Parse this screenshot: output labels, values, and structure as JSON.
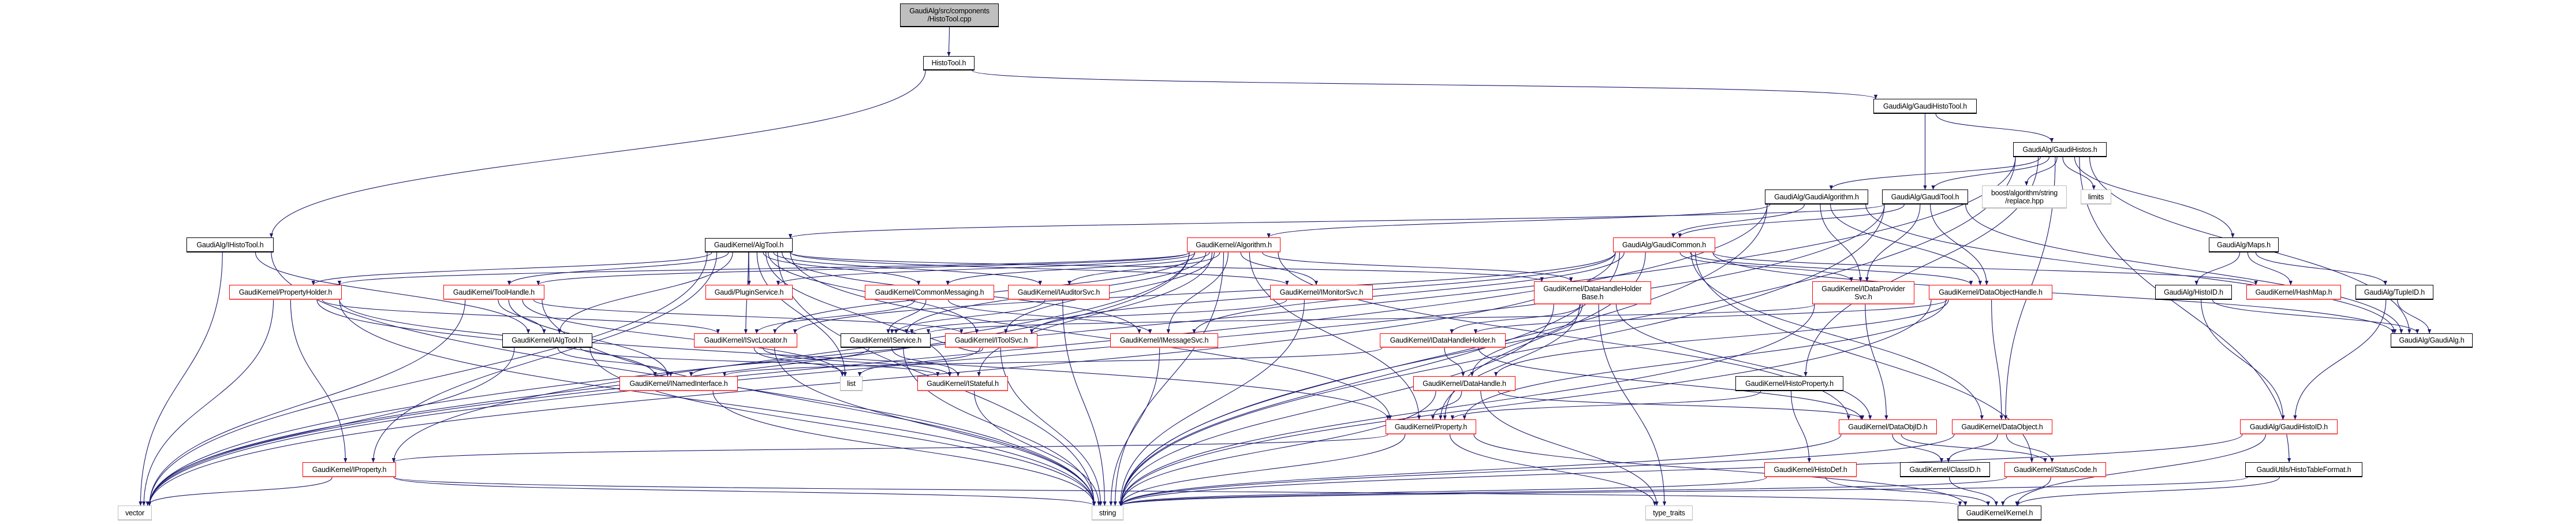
{
  "graph": {
    "edge_color": "#191970",
    "colors": {
      "documented": "#000000",
      "truncated": "#ff0000",
      "external": "#bfbfbf",
      "root_fill": "#bfbfbf"
    },
    "nodes": [
      {
        "id": "cpp",
        "label": "GaudiAlg/src/components\n/HistoTool.cpp",
        "style": "root"
      },
      {
        "id": "HistoTool",
        "label": "HistoTool.h",
        "style": "documented"
      },
      {
        "id": "IHistoTool",
        "label": "GaudiAlg/IHistoTool.h",
        "style": "documented"
      },
      {
        "id": "GaudiHistoTool",
        "label": "GaudiAlg/GaudiHistoTool.h",
        "style": "documented"
      },
      {
        "id": "GaudiHistos",
        "label": "GaudiAlg/GaudiHistos.h",
        "style": "documented"
      },
      {
        "id": "GaudiAlgorithm",
        "label": "GaudiAlg/GaudiAlgorithm.h",
        "style": "documented"
      },
      {
        "id": "GaudiTool",
        "label": "GaudiAlg/GaudiTool.h",
        "style": "documented"
      },
      {
        "id": "boost",
        "label": "boost/algorithm/string\n/replace.hpp",
        "style": "external"
      },
      {
        "id": "limits",
        "label": "limits",
        "style": "external"
      },
      {
        "id": "AlgTool",
        "label": "GaudiKernel/AlgTool.h",
        "style": "documented"
      },
      {
        "id": "Algorithm",
        "label": "GaudiKernel/Algorithm.h",
        "style": "truncated"
      },
      {
        "id": "GaudiCommon",
        "label": "GaudiAlg/GaudiCommon.h",
        "style": "truncated"
      },
      {
        "id": "Maps",
        "label": "GaudiAlg/Maps.h",
        "style": "documented"
      },
      {
        "id": "PropertyHolder",
        "label": "GaudiKernel/PropertyHolder.h",
        "style": "truncated"
      },
      {
        "id": "ToolHandle",
        "label": "GaudiKernel/ToolHandle.h",
        "style": "truncated"
      },
      {
        "id": "PluginService",
        "label": "Gaudi/PluginService.h",
        "style": "truncated"
      },
      {
        "id": "CommonMessaging",
        "label": "GaudiKernel/CommonMessaging.h",
        "style": "truncated"
      },
      {
        "id": "IAuditorSvc",
        "label": "GaudiKernel/IAuditorSvc.h",
        "style": "truncated"
      },
      {
        "id": "IMonitorSvc",
        "label": "GaudiKernel/IMonitorSvc.h",
        "style": "truncated"
      },
      {
        "id": "DHHB",
        "label": "GaudiKernel/DataHandleHolder\nBase.h",
        "style": "truncated"
      },
      {
        "id": "IDataProviderSvc",
        "label": "GaudiKernel/IDataProvider\nSvc.h",
        "style": "truncated"
      },
      {
        "id": "DataObjectHandle",
        "label": "GaudiKernel/DataObjectHandle.h",
        "style": "truncated"
      },
      {
        "id": "HistoID",
        "label": "GaudiAlg/HistoID.h",
        "style": "documented"
      },
      {
        "id": "HashMap",
        "label": "GaudiKernel/HashMap.h",
        "style": "truncated"
      },
      {
        "id": "TupleID",
        "label": "GaudiAlg/TupleID.h",
        "style": "documented"
      },
      {
        "id": "IAlgTool",
        "label": "GaudiKernel/IAlgTool.h",
        "style": "documented"
      },
      {
        "id": "ISvcLocator",
        "label": "GaudiKernel/ISvcLocator.h",
        "style": "truncated"
      },
      {
        "id": "IService",
        "label": "GaudiKernel/IService.h",
        "style": "documented"
      },
      {
        "id": "IToolSvc",
        "label": "GaudiKernel/IToolSvc.h",
        "style": "truncated"
      },
      {
        "id": "IMessageSvc",
        "label": "GaudiKernel/IMessageSvc.h",
        "style": "truncated"
      },
      {
        "id": "IDataHandleHolder",
        "label": "GaudiKernel/IDataHandleHolder.h",
        "style": "truncated"
      },
      {
        "id": "GaudiAlgH",
        "label": "GaudiAlg/GaudiAlg.h",
        "style": "documented"
      },
      {
        "id": "INamedInterface",
        "label": "GaudiKernel/INamedInterface.h",
        "style": "truncated"
      },
      {
        "id": "list",
        "label": "list",
        "style": "external"
      },
      {
        "id": "IStateful",
        "label": "GaudiKernel/IStateful.h",
        "style": "truncated"
      },
      {
        "id": "DataHandle",
        "label": "GaudiKernel/DataHandle.h",
        "style": "truncated"
      },
      {
        "id": "HistoProperty",
        "label": "GaudiKernel/HistoProperty.h",
        "style": "documented"
      },
      {
        "id": "Property",
        "label": "GaudiKernel/Property.h",
        "style": "truncated"
      },
      {
        "id": "DataObjID",
        "label": "GaudiKernel/DataObjID.h",
        "style": "truncated"
      },
      {
        "id": "DataObject",
        "label": "GaudiKernel/DataObject.h",
        "style": "truncated"
      },
      {
        "id": "GaudiHistoID",
        "label": "GaudiAlg/GaudiHistoID.h",
        "style": "truncated"
      },
      {
        "id": "IProperty",
        "label": "GaudiKernel/IProperty.h",
        "style": "truncated"
      },
      {
        "id": "HistoDef",
        "label": "GaudiKernel/HistoDef.h",
        "style": "truncated"
      },
      {
        "id": "ClassID",
        "label": "GaudiKernel/ClassID.h",
        "style": "documented"
      },
      {
        "id": "StatusCode",
        "label": "GaudiKernel/StatusCode.h",
        "style": "truncated"
      },
      {
        "id": "HistoTableFormat",
        "label": "GaudiUtils/HistoTableFormat.h",
        "style": "documented"
      },
      {
        "id": "vector",
        "label": "vector",
        "style": "external"
      },
      {
        "id": "string",
        "label": "string",
        "style": "external"
      },
      {
        "id": "type_traits",
        "label": "type_traits",
        "style": "external"
      },
      {
        "id": "Kernel",
        "label": "GaudiKernel/Kernel.h",
        "style": "documented"
      }
    ],
    "edges": [
      [
        "cpp",
        "HistoTool"
      ],
      [
        "HistoTool",
        "IHistoTool"
      ],
      [
        "HistoTool",
        "GaudiHistoTool"
      ],
      [
        "GaudiHistoTool",
        "GaudiHistos"
      ],
      [
        "GaudiHistoTool",
        "GaudiTool"
      ],
      [
        "GaudiHistos",
        "GaudiAlgorithm"
      ],
      [
        "GaudiHistos",
        "GaudiTool"
      ],
      [
        "GaudiHistos",
        "boost"
      ],
      [
        "GaudiHistos",
        "limits"
      ],
      [
        "GaudiHistos",
        "Maps"
      ],
      [
        "GaudiHistos",
        "HistoProperty"
      ],
      [
        "GaudiHistos",
        "HistoTableFormat"
      ],
      [
        "GaudiHistos",
        "DataObject"
      ],
      [
        "GaudiHistos",
        "vector"
      ],
      [
        "GaudiHistos",
        "string"
      ],
      [
        "GaudiHistos",
        "GaudiAlgH"
      ],
      [
        "GaudiAlgorithm",
        "GaudiCommon"
      ],
      [
        "GaudiAlgorithm",
        "Algorithm"
      ],
      [
        "GaudiAlgorithm",
        "vector"
      ],
      [
        "GaudiAlgorithm",
        "string"
      ],
      [
        "GaudiAlgorithm",
        "DataObjectHandle"
      ],
      [
        "GaudiAlgorithm",
        "IDataProviderSvc"
      ],
      [
        "GaudiAlgorithm",
        "GaudiAlgH"
      ],
      [
        "GaudiTool",
        "GaudiCommon"
      ],
      [
        "GaudiTool",
        "AlgTool"
      ],
      [
        "GaudiTool",
        "DataObjectHandle"
      ],
      [
        "GaudiTool",
        "GaudiAlgH"
      ],
      [
        "GaudiTool",
        "IDataProviderSvc"
      ],
      [
        "GaudiTool",
        "vector"
      ],
      [
        "GaudiTool",
        "string"
      ],
      [
        "IHistoTool",
        "IAlgTool"
      ],
      [
        "IHistoTool",
        "string"
      ],
      [
        "IHistoTool",
        "vector"
      ],
      [
        "AlgTool",
        "PropertyHolder"
      ],
      [
        "AlgTool",
        "ToolHandle"
      ],
      [
        "AlgTool",
        "PluginService"
      ],
      [
        "AlgTool",
        "CommonMessaging"
      ],
      [
        "AlgTool",
        "IAuditorSvc"
      ],
      [
        "AlgTool",
        "IMonitorSvc"
      ],
      [
        "AlgTool",
        "ISvcLocator"
      ],
      [
        "AlgTool",
        "IToolSvc"
      ],
      [
        "AlgTool",
        "IMessageSvc"
      ],
      [
        "AlgTool",
        "IAlgTool"
      ],
      [
        "AlgTool",
        "IStateful"
      ],
      [
        "AlgTool",
        "DHHB"
      ],
      [
        "AlgTool",
        "vector"
      ],
      [
        "AlgTool",
        "string"
      ],
      [
        "AlgTool",
        "list"
      ],
      [
        "AlgTool",
        "IProperty"
      ],
      [
        "AlgTool",
        "Property"
      ],
      [
        "Algorithm",
        "PropertyHolder"
      ],
      [
        "Algorithm",
        "ToolHandle"
      ],
      [
        "Algorithm",
        "PluginService"
      ],
      [
        "Algorithm",
        "CommonMessaging"
      ],
      [
        "Algorithm",
        "IAuditorSvc"
      ],
      [
        "Algorithm",
        "IMonitorSvc"
      ],
      [
        "Algorithm",
        "ISvcLocator"
      ],
      [
        "Algorithm",
        "IToolSvc"
      ],
      [
        "Algorithm",
        "IMessageSvc"
      ],
      [
        "Algorithm",
        "IStateful"
      ],
      [
        "Algorithm",
        "DHHB"
      ],
      [
        "Algorithm",
        "IService"
      ],
      [
        "Algorithm",
        "vector"
      ],
      [
        "Algorithm",
        "string"
      ],
      [
        "Algorithm",
        "IProperty"
      ],
      [
        "Algorithm",
        "Property"
      ],
      [
        "Algorithm",
        "DataObjID"
      ],
      [
        "GaudiCommon",
        "IDataProviderSvc"
      ],
      [
        "GaudiCommon",
        "DataObjectHandle"
      ],
      [
        "GaudiCommon",
        "HashMap"
      ],
      [
        "GaudiCommon",
        "StatusCode"
      ],
      [
        "GaudiCommon",
        "DataObject"
      ],
      [
        "GaudiCommon",
        "Property"
      ],
      [
        "GaudiCommon",
        "vector"
      ],
      [
        "GaudiCommon",
        "string"
      ],
      [
        "GaudiCommon",
        "ISvcLocator"
      ],
      [
        "GaudiCommon",
        "IMessageSvc"
      ],
      [
        "GaudiCommon",
        "IToolSvc"
      ],
      [
        "GaudiCommon",
        "GaudiAlgH"
      ],
      [
        "PropertyHolder",
        "IProperty"
      ],
      [
        "PropertyHolder",
        "Property"
      ],
      [
        "PropertyHolder",
        "INamedInterface"
      ],
      [
        "PropertyHolder",
        "ISvcLocator"
      ],
      [
        "PropertyHolder",
        "vector"
      ],
      [
        "PropertyHolder",
        "string"
      ],
      [
        "ToolHandle",
        "IAlgTool"
      ],
      [
        "ToolHandle",
        "IToolSvc"
      ],
      [
        "ToolHandle",
        "INamedInterface"
      ],
      [
        "ToolHandle",
        "string"
      ],
      [
        "ToolHandle",
        "vector"
      ],
      [
        "ToolHandle",
        "list"
      ],
      [
        "CommonMessaging",
        "IService"
      ],
      [
        "CommonMessaging",
        "IMessageSvc"
      ],
      [
        "CommonMessaging",
        "ISvcLocator"
      ],
      [
        "IAuditorSvc",
        "IService"
      ],
      [
        "IAuditorSvc",
        "string"
      ],
      [
        "IMonitorSvc",
        "IService"
      ],
      [
        "IMonitorSvc",
        "string"
      ],
      [
        "DHHB",
        "IDataHandleHolder"
      ],
      [
        "DHHB",
        "DataHandle"
      ],
      [
        "DHHB",
        "DataObjID"
      ],
      [
        "DHHB",
        "Property"
      ],
      [
        "DHHB",
        "type_traits"
      ],
      [
        "DHHB",
        "string"
      ],
      [
        "IDataHandleHolder",
        "DataHandle"
      ],
      [
        "IDataHandleHolder",
        "INamedInterface"
      ],
      [
        "IDataHandleHolder",
        "DataObjID"
      ],
      [
        "IDataProviderSvc",
        "DataObjID"
      ],
      [
        "IDataProviderSvc",
        "string"
      ],
      [
        "IDataProviderSvc",
        "IService"
      ],
      [
        "DataObjectHandle",
        "DataHandle"
      ],
      [
        "DataObjectHandle",
        "IDataHandleHolder"
      ],
      [
        "DataObjectHandle",
        "DataObject"
      ],
      [
        "DataObjectHandle",
        "string"
      ],
      [
        "DataObjectHandle",
        "Property"
      ],
      [
        "IAlgTool",
        "INamedInterface"
      ],
      [
        "IAlgTool",
        "IStateful"
      ],
      [
        "IAlgTool",
        "string"
      ],
      [
        "IAlgTool",
        "vector"
      ],
      [
        "ISvcLocator",
        "list"
      ],
      [
        "ISvcLocator",
        "string"
      ],
      [
        "ISvcLocator",
        "IStateful"
      ],
      [
        "IService",
        "INamedInterface"
      ],
      [
        "IService",
        "IStateful"
      ],
      [
        "IService",
        "string"
      ],
      [
        "IToolSvc",
        "list"
      ],
      [
        "IToolSvc",
        "string"
      ],
      [
        "IToolSvc",
        "IService"
      ],
      [
        "IMessageSvc",
        "string"
      ],
      [
        "IStateful",
        "string"
      ],
      [
        "DataHandle",
        "Property"
      ],
      [
        "DataHandle",
        "DataObjID"
      ],
      [
        "DataHandle",
        "type_traits"
      ],
      [
        "DataHandle",
        "string"
      ],
      [
        "INamedInterface",
        "string"
      ],
      [
        "IProperty",
        "vector"
      ],
      [
        "IProperty",
        "string"
      ],
      [
        "IProperty",
        "Kernel"
      ],
      [
        "Property",
        "IProperty"
      ],
      [
        "Property",
        "Kernel"
      ],
      [
        "Property",
        "string"
      ],
      [
        "Property",
        "type_traits"
      ],
      [
        "HistoProperty",
        "Property"
      ],
      [
        "HistoProperty",
        "HistoDef"
      ],
      [
        "Maps",
        "HistoID"
      ],
      [
        "Maps",
        "HashMap"
      ],
      [
        "Maps",
        "TupleID"
      ],
      [
        "HistoID",
        "GaudiAlgH"
      ],
      [
        "HistoID",
        "GaudiHistoID"
      ],
      [
        "TupleID",
        "GaudiAlgH"
      ],
      [
        "TupleID",
        "GaudiHistoID"
      ],
      [
        "DataObjID",
        "ClassID"
      ],
      [
        "DataObjID",
        "StatusCode"
      ],
      [
        "DataObjID",
        "string"
      ],
      [
        "DataObject",
        "ClassID"
      ],
      [
        "DataObject",
        "StatusCode"
      ],
      [
        "DataObject",
        "string"
      ],
      [
        "GaudiHistoID",
        "Kernel"
      ],
      [
        "GaudiHistoID",
        "string"
      ],
      [
        "HistoDef",
        "Kernel"
      ],
      [
        "HistoDef",
        "string"
      ],
      [
        "ClassID",
        "Kernel"
      ],
      [
        "StatusCode",
        "Kernel"
      ],
      [
        "StatusCode",
        "string"
      ],
      [
        "HistoTableFormat",
        "Kernel"
      ],
      [
        "HistoTableFormat",
        "string"
      ]
    ]
  }
}
